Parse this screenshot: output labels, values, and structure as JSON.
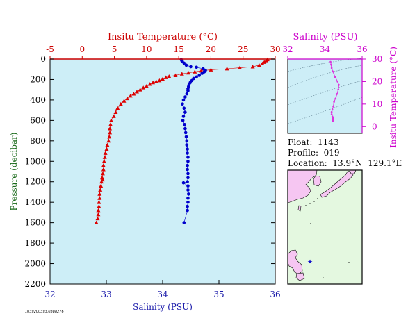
{
  "chart_data": [
    {
      "type": "scatter",
      "title": "",
      "top_axis": {
        "label": "Insitu Temperature (°C)",
        "range": [
          -5,
          30
        ],
        "ticks": [
          -5,
          0,
          5,
          10,
          15,
          20,
          25,
          30
        ],
        "color": "#cc0000"
      },
      "bottom_axis": {
        "label": "Salinity (PSU)",
        "range": [
          32,
          36
        ],
        "ticks": [
          32,
          33,
          34,
          35,
          36
        ],
        "color": "#1a1aaa"
      },
      "left_axis": {
        "label": "Pressure (decibar)",
        "range": [
          0,
          2200
        ],
        "inverted": true,
        "ticks": [
          0,
          200,
          400,
          600,
          800,
          1000,
          1200,
          1400,
          1600,
          1800,
          2000,
          2200
        ]
      },
      "plot_background": "#cdeef7",
      "series": [
        {
          "name": "Insitu Temperature",
          "marker": "triangle",
          "color": "#dd0000",
          "x_axis": "top",
          "points": [
            [
              28.8,
              5
            ],
            [
              28.6,
              15
            ],
            [
              28.3,
              30
            ],
            [
              28.0,
              45
            ],
            [
              27.5,
              60
            ],
            [
              26.5,
              75
            ],
            [
              24.5,
              85
            ],
            [
              22.5,
              95
            ],
            [
              20.0,
              105
            ],
            [
              18.5,
              115
            ],
            [
              17.5,
              125
            ],
            [
              16.5,
              135
            ],
            [
              15.5,
              145
            ],
            [
              14.5,
              160
            ],
            [
              13.5,
              170
            ],
            [
              13.0,
              180
            ],
            [
              12.5,
              195
            ],
            [
              12.0,
              210
            ],
            [
              11.5,
              220
            ],
            [
              11.0,
              230
            ],
            [
              10.5,
              245
            ],
            [
              10.0,
              265
            ],
            [
              9.5,
              280
            ],
            [
              9.0,
              300
            ],
            [
              8.5,
              320
            ],
            [
              8.0,
              340
            ],
            [
              7.5,
              360
            ],
            [
              7.0,
              385
            ],
            [
              6.5,
              410
            ],
            [
              6.0,
              440
            ],
            [
              5.5,
              480
            ],
            [
              5.2,
              520
            ],
            [
              4.9,
              560
            ],
            [
              4.5,
              600
            ],
            [
              4.4,
              640
            ],
            [
              4.3,
              680
            ],
            [
              4.3,
              720
            ],
            [
              4.2,
              760
            ],
            [
              4.1,
              800
            ],
            [
              3.9,
              840
            ],
            [
              3.8,
              880
            ],
            [
              3.6,
              920
            ],
            [
              3.5,
              960
            ],
            [
              3.4,
              1000
            ],
            [
              3.3,
              1040
            ],
            [
              3.3,
              1080
            ],
            [
              3.2,
              1120
            ],
            [
              3.1,
              1160
            ],
            [
              3.0,
              1200
            ],
            [
              3.2,
              1180
            ],
            [
              2.9,
              1240
            ],
            [
              2.8,
              1280
            ],
            [
              2.7,
              1320
            ],
            [
              2.7,
              1360
            ],
            [
              2.6,
              1400
            ],
            [
              2.6,
              1440
            ],
            [
              2.5,
              1480
            ],
            [
              2.5,
              1520
            ],
            [
              2.4,
              1560
            ],
            [
              2.2,
              1600
            ]
          ]
        },
        {
          "name": "Salinity",
          "marker": "circle",
          "color": "#0000cc",
          "x_axis": "bottom",
          "points": [
            [
              34.33,
              5
            ],
            [
              34.34,
              15
            ],
            [
              34.35,
              25
            ],
            [
              34.38,
              40
            ],
            [
              34.42,
              60
            ],
            [
              34.5,
              75
            ],
            [
              34.6,
              80
            ],
            [
              34.72,
              95
            ],
            [
              34.76,
              110
            ],
            [
              34.74,
              125
            ],
            [
              34.7,
              140
            ],
            [
              34.65,
              160
            ],
            [
              34.6,
              175
            ],
            [
              34.55,
              190
            ],
            [
              34.52,
              210
            ],
            [
              34.49,
              230
            ],
            [
              34.47,
              250
            ],
            [
              34.46,
              270
            ],
            [
              34.45,
              290
            ],
            [
              34.45,
              310
            ],
            [
              34.43,
              340
            ],
            [
              34.4,
              370
            ],
            [
              34.37,
              400
            ],
            [
              34.35,
              440
            ],
            [
              34.38,
              480
            ],
            [
              34.4,
              520
            ],
            [
              34.37,
              560
            ],
            [
              34.36,
              600
            ],
            [
              34.39,
              640
            ],
            [
              34.4,
              680
            ],
            [
              34.41,
              720
            ],
            [
              34.42,
              760
            ],
            [
              34.43,
              800
            ],
            [
              34.43,
              840
            ],
            [
              34.44,
              880
            ],
            [
              34.44,
              920
            ],
            [
              34.45,
              960
            ],
            [
              34.45,
              1000
            ],
            [
              34.44,
              1040
            ],
            [
              34.44,
              1080
            ],
            [
              34.45,
              1120
            ],
            [
              34.45,
              1160
            ],
            [
              34.44,
              1200
            ],
            [
              34.37,
              1210
            ],
            [
              34.45,
              1240
            ],
            [
              34.45,
              1280
            ],
            [
              34.46,
              1320
            ],
            [
              34.45,
              1360
            ],
            [
              34.45,
              1400
            ],
            [
              34.44,
              1440
            ],
            [
              34.44,
              1480
            ],
            [
              34.38,
              1600
            ]
          ]
        }
      ]
    },
    {
      "type": "scatter",
      "title": "",
      "top_axis": {
        "label": "Salinity (PSU)",
        "range": [
          32,
          36
        ],
        "ticks": [
          32,
          34,
          36
        ],
        "color": "#cc00cc"
      },
      "right_axis": {
        "label": "Insitu Temperature (°C)",
        "range": [
          -3,
          30
        ],
        "ticks": [
          0,
          10,
          20,
          30
        ],
        "color": "#cc00cc"
      },
      "plot_background": "#cdeef7",
      "series": [
        {
          "name": "T-S",
          "color": "#dd33dd",
          "points": [
            [
              34.3,
              28.8
            ],
            [
              34.33,
              27.5
            ],
            [
              34.36,
              26.0
            ],
            [
              34.42,
              24.5
            ],
            [
              34.55,
              22.0
            ],
            [
              34.68,
              20.0
            ],
            [
              34.75,
              18.5
            ],
            [
              34.72,
              16.5
            ],
            [
              34.65,
              14.5
            ],
            [
              34.57,
              12.5
            ],
            [
              34.49,
              11.0
            ],
            [
              34.45,
              9.0
            ],
            [
              34.4,
              7.5
            ],
            [
              34.36,
              6.5
            ],
            [
              34.36,
              5.5
            ],
            [
              34.4,
              4.5
            ],
            [
              34.43,
              3.8
            ],
            [
              34.44,
              3.2
            ],
            [
              34.44,
              2.8
            ],
            [
              34.42,
              2.4
            ]
          ]
        }
      ]
    }
  ],
  "info": {
    "float": "Float:  1143",
    "profile": "Profile:  019",
    "location": "Location:  13.9°N  129.1°E"
  },
  "map": {
    "land_color": "#f6c6f2",
    "sea_color": "#e4f8e0",
    "marker_color": "#1010cc",
    "marker": "star"
  },
  "file_id": "1039200393.0388276"
}
